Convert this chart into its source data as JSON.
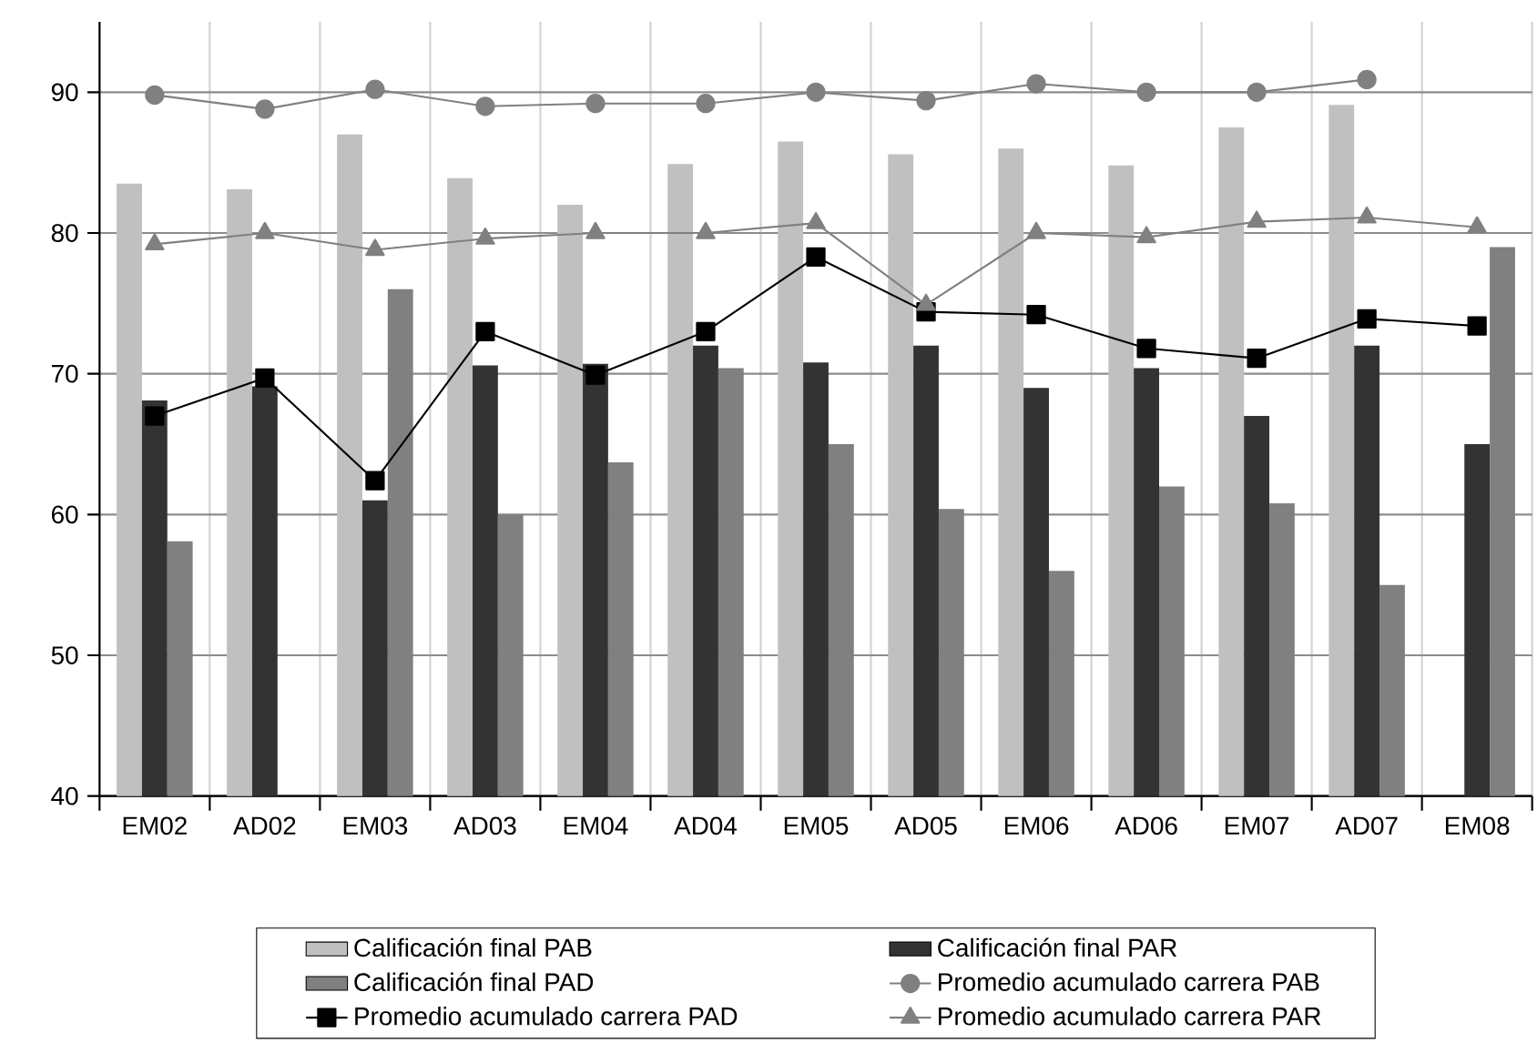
{
  "chart_data": {
    "type": "bar",
    "categories": [
      "EM02",
      "AD02",
      "EM03",
      "AD03",
      "EM04",
      "AD04",
      "EM05",
      "AD05",
      "EM06",
      "AD06",
      "EM07",
      "AD07",
      "EM08"
    ],
    "series": [
      {
        "name": "Calificación final PAB",
        "color": "#c0c0c0",
        "values": [
          83.5,
          83.1,
          87.0,
          83.9,
          82.0,
          84.9,
          86.5,
          85.6,
          86.0,
          84.8,
          87.5,
          89.1,
          null
        ]
      },
      {
        "name": "Calificación final PAR",
        "color": "#333333",
        "values": [
          68.1,
          69.1,
          61.0,
          70.6,
          70.7,
          72.0,
          70.8,
          72.0,
          69.0,
          70.4,
          67.0,
          72.0,
          65.0
        ]
      },
      {
        "name": "Calificación final PAD",
        "color": "#808080",
        "values": [
          58.1,
          null,
          76.0,
          60.0,
          63.7,
          70.4,
          65.0,
          60.4,
          56.0,
          62.0,
          60.8,
          55.0,
          79.0
        ]
      },
      {
        "name": "Promedio acumulado carrera PAB",
        "type": "line",
        "marker": "circle",
        "color": "#808080",
        "values": [
          89.8,
          88.8,
          90.2,
          89.0,
          89.2,
          89.2,
          90.0,
          89.4,
          90.6,
          90.0,
          90.0,
          90.9,
          null
        ]
      },
      {
        "name": "Promedio acumulado carrera PAD",
        "type": "line",
        "marker": "square",
        "color": "#000000",
        "values": [
          67.0,
          69.7,
          62.4,
          73.0,
          69.9,
          73.0,
          78.3,
          74.4,
          74.2,
          71.8,
          71.1,
          73.9,
          73.4
        ]
      },
      {
        "name": "Promedio acumulado carrera PAR",
        "type": "line",
        "marker": "triangle",
        "color": "#808080",
        "values": [
          79.2,
          80.0,
          78.8,
          79.6,
          80.0,
          80.0,
          80.7,
          74.9,
          80.0,
          79.7,
          80.8,
          81.1,
          80.4
        ]
      }
    ],
    "ylim": [
      40,
      95
    ],
    "yticks": [
      40,
      50,
      60,
      70,
      80,
      90
    ],
    "grid": true,
    "legend": "bottom"
  }
}
